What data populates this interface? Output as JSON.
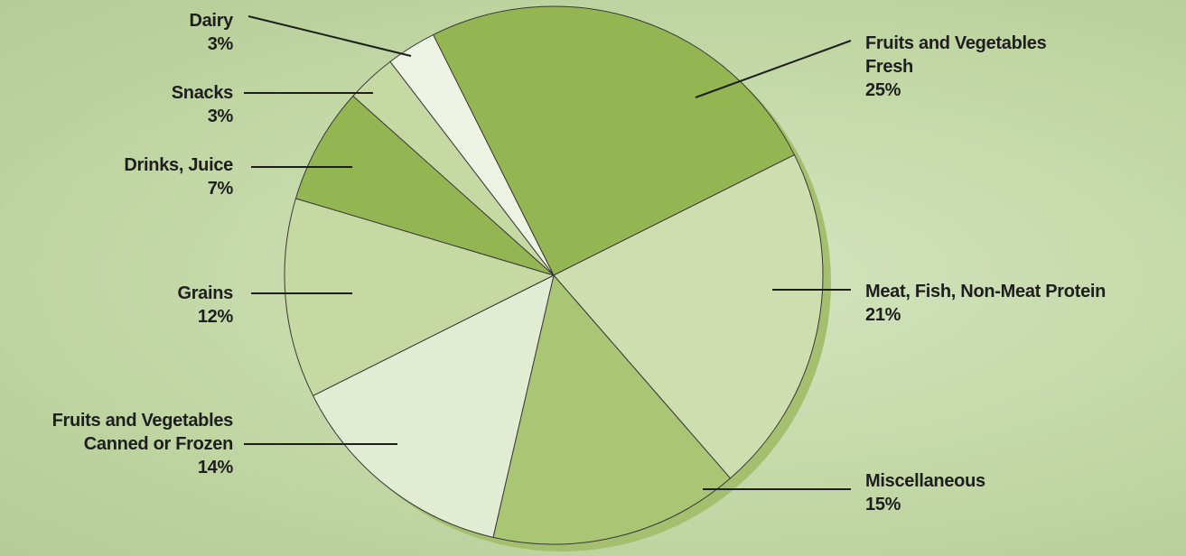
{
  "chart_data": {
    "type": "pie",
    "categories": [
      "Fruits and Vegetables\nFresh",
      "Meat, Fish, Non-Meat Protein",
      "Miscellaneous",
      "Fruits and Vegetables\nCanned or Frozen",
      "Grains",
      "Drinks, Juice",
      "Snacks",
      "Dairy"
    ],
    "values": [
      25,
      21,
      15,
      14,
      12,
      7,
      3,
      3
    ],
    "value_labels": [
      "25%",
      "21%",
      "15%",
      "14%",
      "12%",
      "7%",
      "3%",
      "3%"
    ],
    "colors": [
      "#93b652",
      "#cfdeae",
      "#a9c674",
      "#e2ecd3",
      "#c6d9a3",
      "#93b652",
      "#c6d9a3",
      "#eef4e3"
    ]
  }
}
